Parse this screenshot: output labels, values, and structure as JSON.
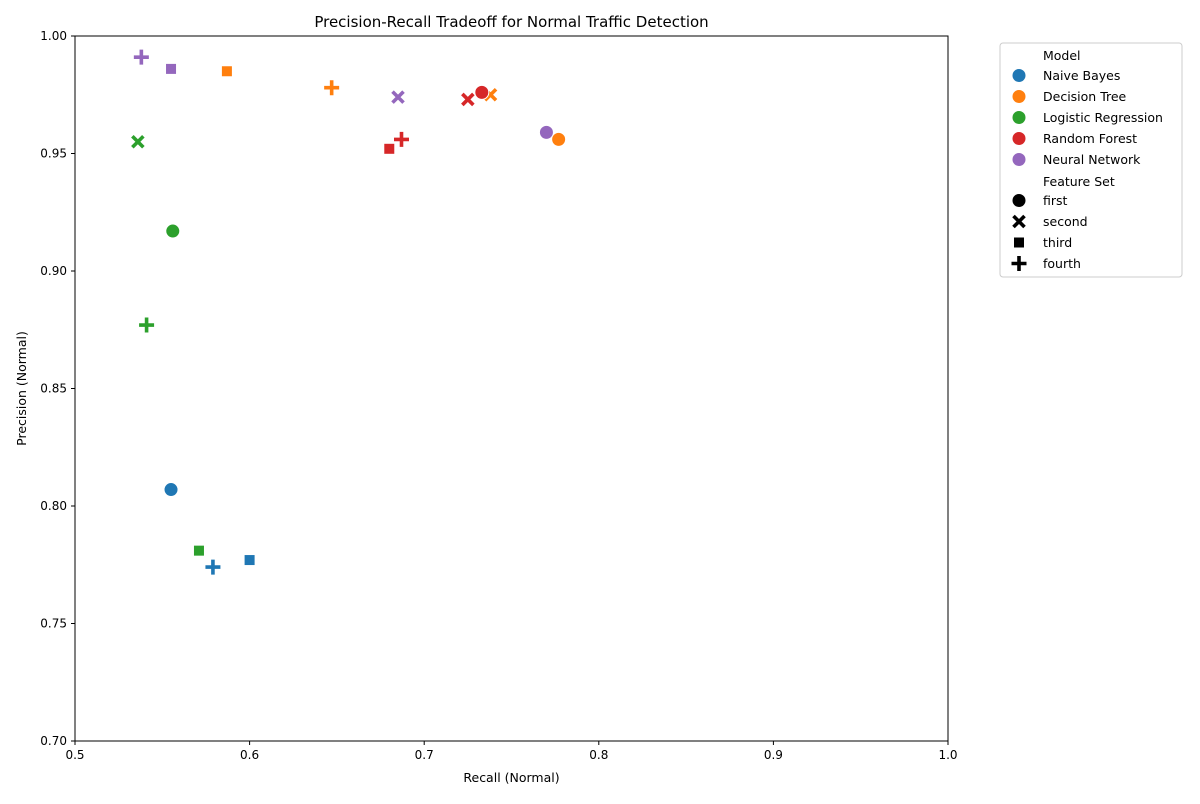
{
  "chart_data": {
    "type": "scatter",
    "title": "Precision-Recall Tradeoff for Normal Traffic Detection",
    "xlabel": "Recall (Normal)",
    "ylabel": "Precision (Normal)",
    "xlim": [
      0.5,
      1.0
    ],
    "ylim": [
      0.7,
      1.0
    ],
    "xticks": [
      "0.5",
      "0.6",
      "0.7",
      "0.8",
      "0.9",
      "1.0"
    ],
    "yticks": [
      "0.70",
      "0.75",
      "0.80",
      "0.85",
      "0.90",
      "0.95",
      "1.00"
    ],
    "grid": false,
    "legend_position": "outside-right",
    "legend": {
      "hue_title": "Model",
      "style_title": "Feature Set"
    },
    "models": [
      {
        "name": "Naive Bayes",
        "color": "#1f77b4"
      },
      {
        "name": "Decision Tree",
        "color": "#ff7f0e"
      },
      {
        "name": "Logistic Regression",
        "color": "#2ca02c"
      },
      {
        "name": "Random Forest",
        "color": "#d62728"
      },
      {
        "name": "Neural Network",
        "color": "#9467bd"
      }
    ],
    "feature_sets": [
      {
        "name": "first",
        "marker": "circle"
      },
      {
        "name": "second",
        "marker": "x"
      },
      {
        "name": "third",
        "marker": "square"
      },
      {
        "name": "fourth",
        "marker": "plus"
      }
    ],
    "points": [
      {
        "model": "Naive Bayes",
        "feature_set": "first",
        "x": 0.555,
        "y": 0.807
      },
      {
        "model": "Naive Bayes",
        "feature_set": "third",
        "x": 0.6,
        "y": 0.777
      },
      {
        "model": "Naive Bayes",
        "feature_set": "fourth",
        "x": 0.579,
        "y": 0.774
      },
      {
        "model": "Decision Tree",
        "feature_set": "first",
        "x": 0.777,
        "y": 0.956
      },
      {
        "model": "Decision Tree",
        "feature_set": "second",
        "x": 0.738,
        "y": 0.975
      },
      {
        "model": "Decision Tree",
        "feature_set": "third",
        "x": 0.587,
        "y": 0.985
      },
      {
        "model": "Decision Tree",
        "feature_set": "fourth",
        "x": 0.647,
        "y": 0.978
      },
      {
        "model": "Logistic Regression",
        "feature_set": "first",
        "x": 0.556,
        "y": 0.917
      },
      {
        "model": "Logistic Regression",
        "feature_set": "second",
        "x": 0.536,
        "y": 0.955
      },
      {
        "model": "Logistic Regression",
        "feature_set": "third",
        "x": 0.571,
        "y": 0.781
      },
      {
        "model": "Logistic Regression",
        "feature_set": "fourth",
        "x": 0.541,
        "y": 0.877
      },
      {
        "model": "Random Forest",
        "feature_set": "first",
        "x": 0.733,
        "y": 0.976
      },
      {
        "model": "Random Forest",
        "feature_set": "second",
        "x": 0.725,
        "y": 0.973
      },
      {
        "model": "Random Forest",
        "feature_set": "third",
        "x": 0.68,
        "y": 0.952
      },
      {
        "model": "Random Forest",
        "feature_set": "fourth",
        "x": 0.687,
        "y": 0.956
      },
      {
        "model": "Neural Network",
        "feature_set": "first",
        "x": 0.77,
        "y": 0.959
      },
      {
        "model": "Neural Network",
        "feature_set": "second",
        "x": 0.685,
        "y": 0.974
      },
      {
        "model": "Neural Network",
        "feature_set": "third",
        "x": 0.555,
        "y": 0.986
      },
      {
        "model": "Neural Network",
        "feature_set": "fourth",
        "x": 0.538,
        "y": 0.991
      }
    ]
  }
}
